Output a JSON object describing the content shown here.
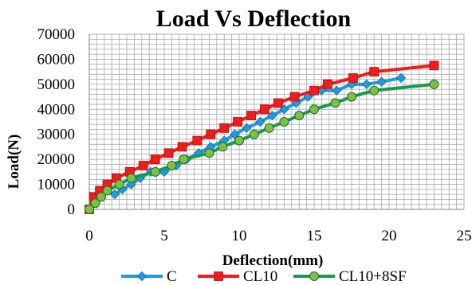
{
  "chart_data": {
    "type": "line",
    "title": "Load Vs Deflection",
    "xlabel": "Deflection(mm)",
    "ylabel": "Load(N)",
    "xlim": [
      0,
      25
    ],
    "ylim": [
      0,
      70000
    ],
    "x_ticks": [
      0,
      5,
      10,
      15,
      20,
      25
    ],
    "y_ticks": [
      0,
      10000,
      20000,
      30000,
      40000,
      50000,
      60000,
      70000
    ],
    "x_tick_labels": [
      "0",
      "5",
      "10",
      "15",
      "20",
      "25"
    ],
    "y_tick_labels": [
      "0",
      "10000",
      "20000",
      "30000",
      "40000",
      "50000",
      "60000",
      "70000"
    ],
    "grid": true,
    "legend_position": "bottom",
    "series": [
      {
        "name": "C",
        "color": "#1f9bde",
        "marker": "diamond",
        "points": [
          [
            0,
            0
          ],
          [
            0.3,
            2500
          ],
          [
            0.7,
            5000
          ],
          [
            1.2,
            7500
          ],
          [
            1.7,
            6000
          ],
          [
            2.2,
            8000
          ],
          [
            2.8,
            10000
          ],
          [
            3.4,
            12500
          ],
          [
            4.1,
            15000
          ],
          [
            5.0,
            15000
          ],
          [
            5.8,
            17500
          ],
          [
            6.5,
            20000
          ],
          [
            7.3,
            22500
          ],
          [
            8.1,
            25000
          ],
          [
            9.0,
            27500
          ],
          [
            9.7,
            30000
          ],
          [
            10.5,
            32500
          ],
          [
            11.4,
            35000
          ],
          [
            12.2,
            37500
          ],
          [
            13.0,
            40000
          ],
          [
            13.8,
            42500
          ],
          [
            14.6,
            45000
          ],
          [
            15.5,
            47500
          ],
          [
            16.5,
            47500
          ],
          [
            17.5,
            50000
          ],
          [
            18.5,
            50000
          ],
          [
            19.5,
            51000
          ],
          [
            20.8,
            52500
          ]
        ]
      },
      {
        "name": "CL10",
        "color": "#ee1c1c",
        "marker": "square",
        "points": [
          [
            0,
            0
          ],
          [
            0.3,
            5000
          ],
          [
            0.7,
            7500
          ],
          [
            1.2,
            10000
          ],
          [
            1.8,
            12500
          ],
          [
            2.7,
            15000
          ],
          [
            3.6,
            17500
          ],
          [
            4.4,
            20000
          ],
          [
            5.3,
            22500
          ],
          [
            6.2,
            25000
          ],
          [
            7.2,
            27500
          ],
          [
            8.1,
            30000
          ],
          [
            9.0,
            32500
          ],
          [
            9.9,
            35000
          ],
          [
            10.8,
            37500
          ],
          [
            11.7,
            40000
          ],
          [
            12.6,
            42500
          ],
          [
            13.7,
            45000
          ],
          [
            15.0,
            47500
          ],
          [
            15.9,
            50000
          ],
          [
            17.6,
            52500
          ],
          [
            19.0,
            55000
          ],
          [
            23.0,
            57500
          ]
        ]
      },
      {
        "name": "CL10+8SF",
        "color": "#1a9a4e",
        "marker": "circle",
        "points": [
          [
            0,
            0
          ],
          [
            0.4,
            2500
          ],
          [
            0.8,
            5000
          ],
          [
            1.2,
            7500
          ],
          [
            2.0,
            10000
          ],
          [
            2.8,
            12500
          ],
          [
            4.4,
            15000
          ],
          [
            5.5,
            17500
          ],
          [
            6.3,
            20000
          ],
          [
            8.0,
            22500
          ],
          [
            8.9,
            25000
          ],
          [
            10.0,
            27500
          ],
          [
            11.0,
            30000
          ],
          [
            12.0,
            32500
          ],
          [
            13.0,
            35000
          ],
          [
            14.0,
            37500
          ],
          [
            15.0,
            40000
          ],
          [
            16.4,
            42500
          ],
          [
            17.5,
            45000
          ],
          [
            19.0,
            47500
          ],
          [
            23.0,
            50000
          ]
        ]
      }
    ]
  }
}
